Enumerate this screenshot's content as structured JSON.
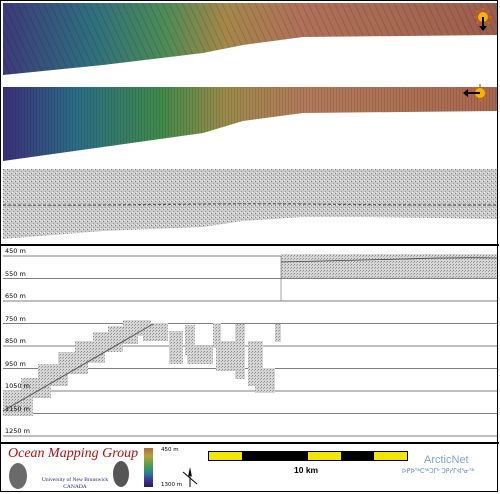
{
  "depth_axis": {
    "labels": [
      "450 m",
      "550 m",
      "650 m",
      "750 m",
      "850 m",
      "950 m",
      "1050 m",
      "1150 m",
      "1250 m"
    ]
  },
  "legend": {
    "group_name": "Ocean Mapping Group",
    "university": "University of New Brunswick",
    "country": "CANADA",
    "colorbar_top": "450 m",
    "colorbar_bottom": "1300 m",
    "scale_label": "10 km",
    "partner": "ArcticNet",
    "partner_syllabics": "ᐅᑭᐅᖅᑕᖅᑐᒥᒃ ᑐᑭᓯᒋᐊᕐᓂᖅ"
  },
  "colors": {
    "scale_yellow": "#f2e600",
    "scale_black": "#000000",
    "brand_red": "#b01010",
    "partner_blue": "#7fa6c8"
  },
  "icons": [
    "sun-icon",
    "north-arrow-icon"
  ]
}
